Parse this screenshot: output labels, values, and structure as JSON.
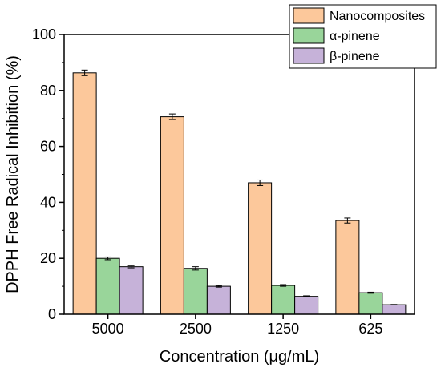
{
  "chart_data": {
    "type": "bar",
    "xlabel": "Concentration (μg/mL)",
    "ylabel": "DPPH Free Radical Inhibition (%)",
    "categories": [
      "5000",
      "2500",
      "1250",
      "625"
    ],
    "ylim": [
      0,
      100
    ],
    "yticks": [
      0,
      20,
      40,
      60,
      80,
      100
    ],
    "grid": false,
    "legend_position": "top-right",
    "series": [
      {
        "name": "Nanocomposites",
        "color": "#fcc89b",
        "values": [
          86.3,
          70.6,
          47.0,
          33.5
        ],
        "errors": [
          1.0,
          1.0,
          1.0,
          0.9
        ]
      },
      {
        "name": "α-pinene",
        "color": "#99d59a",
        "values": [
          20.0,
          16.4,
          10.3,
          7.7
        ],
        "errors": [
          0.5,
          0.6,
          0.3,
          0.2
        ]
      },
      {
        "name": "β-pinene",
        "color": "#c6b2d9",
        "values": [
          17.0,
          10.0,
          6.4,
          3.4
        ],
        "errors": [
          0.4,
          0.3,
          0.2,
          0.1
        ]
      }
    ]
  }
}
